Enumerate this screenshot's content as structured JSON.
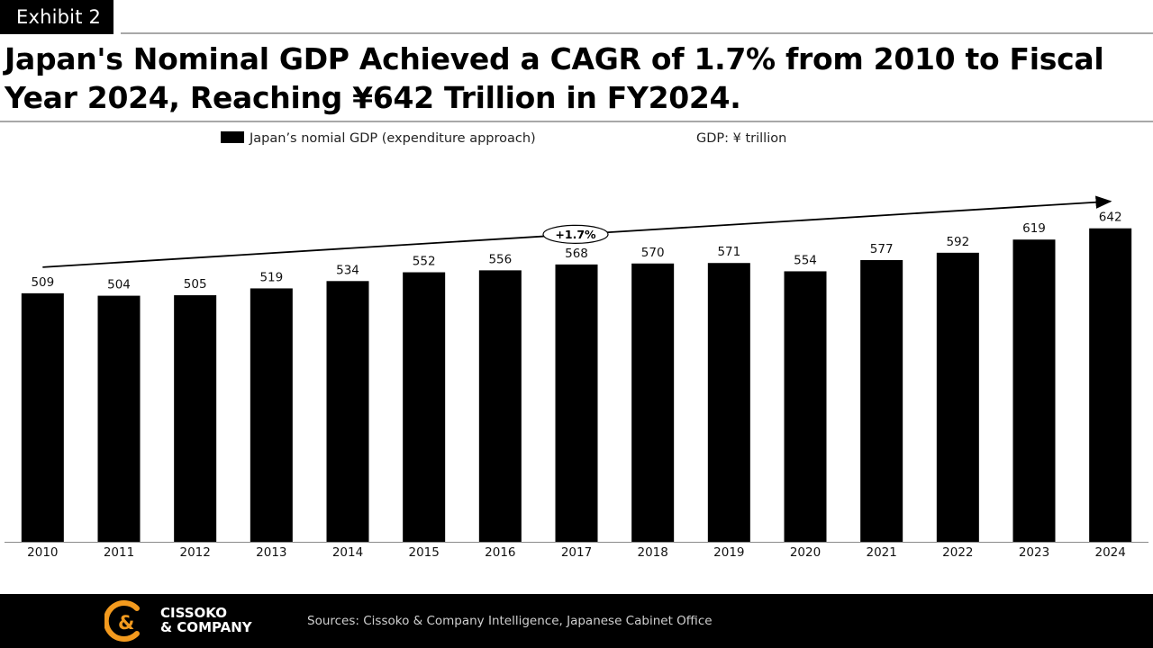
{
  "exhibit_label": "Exhibit 2",
  "title": "Japan's Nominal GDP Achieved a CAGR of 1.7% from 2010 to Fiscal Year 2024, Reaching ¥642 Trillion in FY2024.",
  "legend": {
    "series_label": "Japan’s nomial GDP (expenditure approach)",
    "unit_label": "GDP: ¥ trillion"
  },
  "chart_data": {
    "type": "bar",
    "categories": [
      "2010",
      "2011",
      "2012",
      "2013",
      "2014",
      "2015",
      "2016",
      "2017",
      "2018",
      "2019",
      "2020",
      "2021",
      "2022",
      "2023",
      "2024"
    ],
    "series": [
      {
        "name": "Japan’s nomial GDP (expenditure approach)",
        "values": [
          509,
          504,
          505,
          519,
          534,
          552,
          556,
          568,
          570,
          571,
          554,
          577,
          592,
          619,
          642
        ]
      }
    ],
    "value_labels": [
      "509",
      "504",
      "505",
      "519",
      "534",
      "552",
      "556",
      "568",
      "570",
      "571",
      "554",
      "577",
      "592",
      "619",
      "642"
    ],
    "ylim": [
      0,
      800
    ],
    "bar_color": "#000000",
    "grid": false,
    "legend_position": "top",
    "annotation": {
      "type": "trend-arrow",
      "label": "+1.7%"
    }
  },
  "footer": {
    "brand_line1": "CISSOKO",
    "brand_line2": "& COMPANY",
    "sources": "Sources: Cissoko & Company Intelligence, Japanese Cabinet Office",
    "logo_color": "#F39A1E"
  }
}
